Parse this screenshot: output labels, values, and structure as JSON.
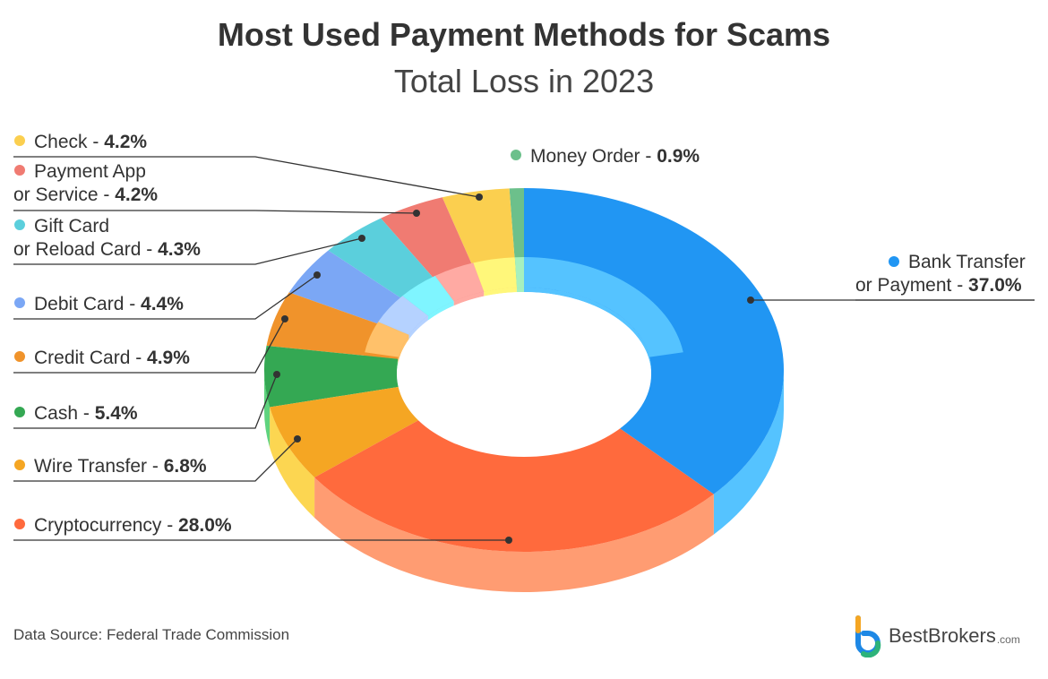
{
  "title": "Most Used Payment Methods for Scams",
  "subtitle": "Total Loss in 2023",
  "source": "Data Source: Federal Trade Commission",
  "brand": {
    "name": "BestBrokers",
    "tld": ".com"
  },
  "chart_data": {
    "type": "pie",
    "title": "Most Used Payment Methods for Scams",
    "subtitle": "Total Loss in 2023",
    "unit": "%",
    "slices": [
      {
        "lines": [
          "Bank Transfer",
          "or Payment"
        ],
        "value": 37.0,
        "pct_text": "37.0%",
        "color": "#2196F3",
        "inner_color": "#55C3FF"
      },
      {
        "lines": [
          "Cryptocurrency"
        ],
        "value": 28.0,
        "pct_text": "28.0%",
        "color": "#FF6A3D",
        "inner_color": "#FF9C72"
      },
      {
        "lines": [
          "Wire Transfer"
        ],
        "value": 6.8,
        "pct_text": "6.8%",
        "color": "#F5A623",
        "inner_color": "#FCD651"
      },
      {
        "lines": [
          "Cash"
        ],
        "value": 5.4,
        "pct_text": "5.4%",
        "color": "#34A853",
        "inner_color": "#5FD37E"
      },
      {
        "lines": [
          "Credit Card"
        ],
        "value": 4.9,
        "pct_text": "4.9%",
        "color": "#F0932B",
        "inner_color": "#FFC16A"
      },
      {
        "lines": [
          "Debit Card"
        ],
        "value": 4.4,
        "pct_text": "4.4%",
        "color": "#7BA7F5",
        "inner_color": "#B5D2FF"
      },
      {
        "lines": [
          "Gift Card",
          "or Reload Card"
        ],
        "value": 4.3,
        "pct_text": "4.3%",
        "color": "#5BCFDC",
        "inner_color": "#7FF5FF"
      },
      {
        "lines": [
          "Payment App",
          "or Service"
        ],
        "value": 4.2,
        "pct_text": "4.2%",
        "color": "#F07B72",
        "inner_color": "#FFAAA3"
      },
      {
        "lines": [
          "Check"
        ],
        "value": 4.2,
        "pct_text": "4.2%",
        "color": "#FBCF4F",
        "inner_color": "#FFF77A"
      },
      {
        "lines": [
          "Money Order"
        ],
        "value": 0.9,
        "pct_text": "0.9%",
        "color": "#6CC08B",
        "inner_color": "#A6F0BE"
      }
    ]
  }
}
